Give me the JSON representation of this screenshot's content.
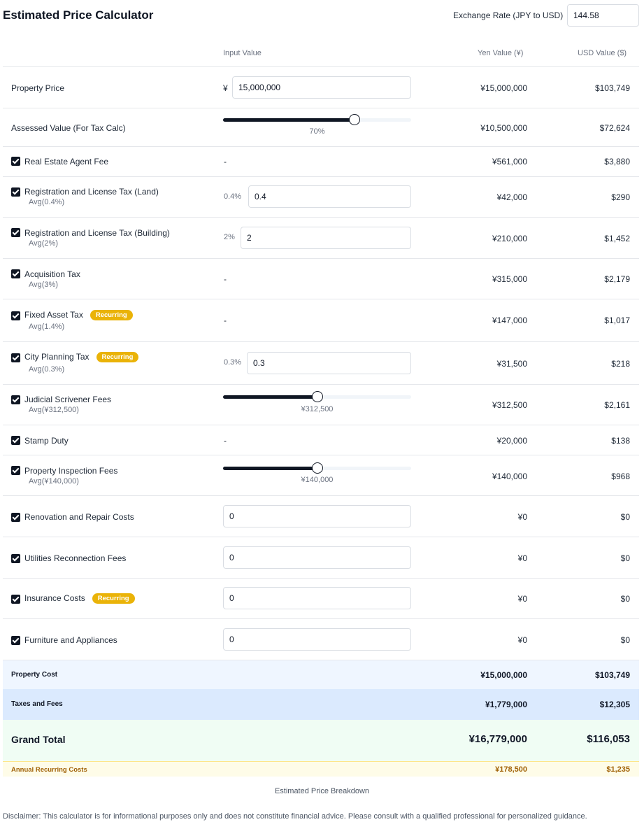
{
  "header": {
    "title": "Estimated Price Calculator",
    "rate_label": "Exchange Rate (JPY to USD)",
    "rate_value": "144.58"
  },
  "columns": {
    "input": "Input Value",
    "yen": "Yen Value (¥)",
    "usd": "USD Value ($)"
  },
  "property": {
    "label": "Property Price",
    "currency_symbol": "¥",
    "value": "15,000,000",
    "yen": "¥15,000,000",
    "usd": "$103,749"
  },
  "assessed": {
    "label": "Assessed Value (For Tax Calc)",
    "slider_percent": 70,
    "slider_label": "70%",
    "yen": "¥10,500,000",
    "usd": "$72,624"
  },
  "agent_fee": {
    "label": "Real Estate Agent Fee",
    "input": "-",
    "yen": "¥561,000",
    "usd": "$3,880"
  },
  "reg_land": {
    "label": "Registration and License Tax (Land)",
    "avg": "Avg(0.4%)",
    "pct": "0.4%",
    "value": "0.4",
    "yen": "¥42,000",
    "usd": "$290"
  },
  "reg_building": {
    "label": "Registration and License Tax (Building)",
    "avg": "Avg(2%)",
    "pct": "2%",
    "value": "2",
    "yen": "¥210,000",
    "usd": "$1,452"
  },
  "acquisition": {
    "label": "Acquisition Tax",
    "avg": "Avg(3%)",
    "input": "-",
    "yen": "¥315,000",
    "usd": "$2,179"
  },
  "fixed_asset": {
    "label": "Fixed Asset Tax",
    "badge": "Recurring",
    "avg": "Avg(1.4%)",
    "input": "-",
    "yen": "¥147,000",
    "usd": "$1,017"
  },
  "city_planning": {
    "label": "City Planning Tax",
    "badge": "Recurring",
    "avg": "Avg(0.3%)",
    "pct": "0.3%",
    "value": "0.3",
    "yen": "¥31,500",
    "usd": "$218"
  },
  "scrivener": {
    "label": "Judicial Scrivener Fees",
    "avg": "Avg(¥312,500)",
    "slider_percent": 50,
    "slider_label": "¥312,500",
    "yen": "¥312,500",
    "usd": "$2,161"
  },
  "stamp": {
    "label": "Stamp Duty",
    "input": "-",
    "yen": "¥20,000",
    "usd": "$138"
  },
  "inspection": {
    "label": "Property Inspection Fees",
    "avg": "Avg(¥140,000)",
    "slider_percent": 50,
    "slider_label": "¥140,000",
    "yen": "¥140,000",
    "usd": "$968"
  },
  "renovation": {
    "label": "Renovation and Repair Costs",
    "value": "0",
    "yen": "¥0",
    "usd": "$0"
  },
  "utilities": {
    "label": "Utilities Reconnection Fees",
    "value": "0",
    "yen": "¥0",
    "usd": "$0"
  },
  "insurance": {
    "label": "Insurance Costs",
    "badge": "Recurring",
    "value": "0",
    "yen": "¥0",
    "usd": "$0"
  },
  "furniture": {
    "label": "Furniture and Appliances",
    "value": "0",
    "yen": "¥0",
    "usd": "$0"
  },
  "summary": {
    "property_cost": {
      "label": "Property Cost",
      "yen": "¥15,000,000",
      "usd": "$103,749"
    },
    "taxes_fees": {
      "label": "Taxes and Fees",
      "yen": "¥1,779,000",
      "usd": "$12,305"
    },
    "grand_total": {
      "label": "Grand Total",
      "yen": "¥16,779,000",
      "usd": "$116,053"
    },
    "recurring": {
      "label": "Annual Recurring Costs",
      "yen": "¥178,500",
      "usd": "$1,235"
    }
  },
  "colors": {
    "accent_dark": "#0f1623",
    "badge": "#eab308",
    "property_bg": "#eff6ff",
    "taxes_bg": "#dbeafe",
    "total_bg": "#f0fdf4",
    "recurring_bg": "#fefce8",
    "recurring_text": "#a16207"
  },
  "footer": {
    "breakdown": "Estimated Price Breakdown",
    "disclaimer": "Disclaimer: This calculator is for informational purposes only and does not constitute financial advice. Please consult with a qualified professional for personalized guidance."
  }
}
